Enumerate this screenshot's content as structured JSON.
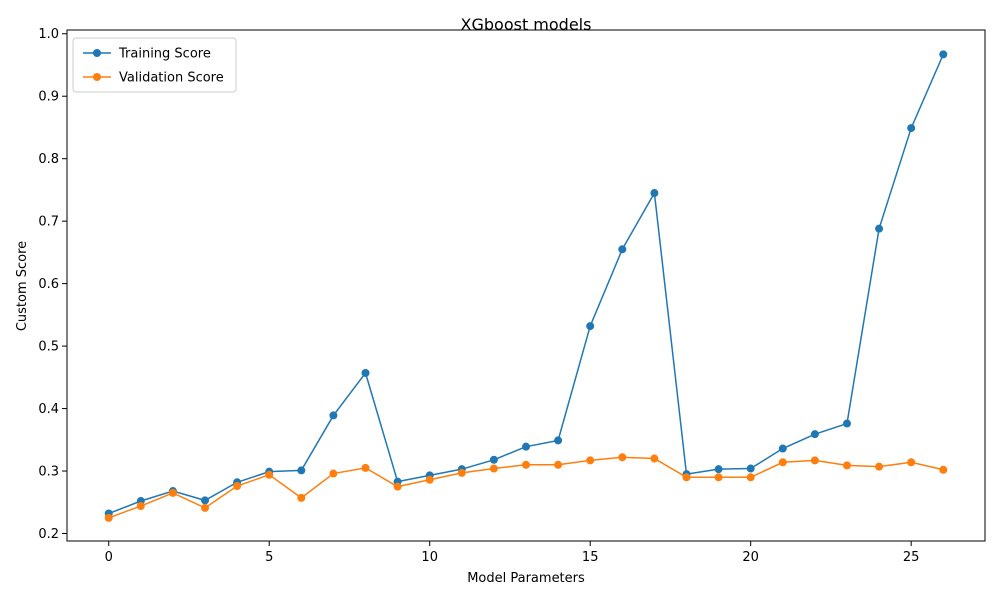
{
  "chart_data": {
    "type": "line",
    "title": "XGboost models",
    "xlabel": "Model Parameters",
    "ylabel": "Custom Score",
    "xlim": [
      -1.3,
      27.3
    ],
    "ylim": [
      0.188,
      1.006
    ],
    "xticks": [
      0,
      5,
      10,
      15,
      20,
      25
    ],
    "yticks": [
      0.2,
      0.3,
      0.4,
      0.5,
      0.6,
      0.7,
      0.8,
      0.9,
      1.0
    ],
    "ytick_labels": [
      "0.2",
      "0.3",
      "0.4",
      "0.5",
      "0.6",
      "0.7",
      "0.8",
      "0.9",
      "1.0"
    ],
    "grid": false,
    "legend_position": "top-left",
    "x": [
      0,
      1,
      2,
      3,
      4,
      5,
      6,
      7,
      8,
      9,
      10,
      11,
      12,
      13,
      14,
      15,
      16,
      17,
      18,
      19,
      20,
      21,
      22,
      23,
      24,
      25,
      26
    ],
    "series": [
      {
        "name": "Training Score",
        "color": "#1f77b4",
        "marker": "circle",
        "values": [
          0.232,
          0.252,
          0.268,
          0.253,
          0.282,
          0.299,
          0.301,
          0.389,
          0.457,
          0.283,
          0.293,
          0.303,
          0.318,
          0.339,
          0.349,
          0.532,
          0.655,
          0.745,
          0.295,
          0.303,
          0.304,
          0.336,
          0.359,
          0.376,
          0.688,
          0.849,
          0.967
        ]
      },
      {
        "name": "Validation Score",
        "color": "#ff7f0e",
        "marker": "circle",
        "values": [
          0.225,
          0.244,
          0.265,
          0.241,
          0.276,
          0.294,
          0.257,
          0.296,
          0.305,
          0.275,
          0.286,
          0.297,
          0.304,
          0.31,
          0.31,
          0.317,
          0.322,
          0.32,
          0.29,
          0.29,
          0.29,
          0.314,
          0.317,
          0.309,
          0.307,
          0.314,
          0.302
        ]
      }
    ]
  }
}
